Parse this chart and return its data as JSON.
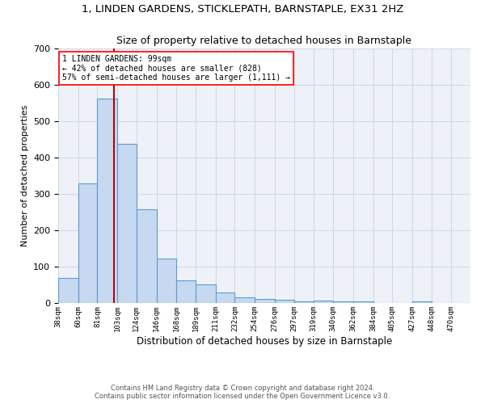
{
  "title": "1, LINDEN GARDENS, STICKLEPATH, BARNSTAPLE, EX31 2HZ",
  "subtitle": "Size of property relative to detached houses in Barnstaple",
  "xlabel": "Distribution of detached houses by size in Barnstaple",
  "ylabel": "Number of detached properties",
  "categories": [
    "38sqm",
    "60sqm",
    "81sqm",
    "103sqm",
    "124sqm",
    "146sqm",
    "168sqm",
    "189sqm",
    "211sqm",
    "232sqm",
    "254sqm",
    "276sqm",
    "297sqm",
    "319sqm",
    "340sqm",
    "362sqm",
    "384sqm",
    "405sqm",
    "427sqm",
    "448sqm",
    "470sqm"
  ],
  "values": [
    70,
    330,
    562,
    438,
    258,
    122,
    63,
    52,
    29,
    16,
    11,
    10,
    5,
    6,
    5,
    4,
    0,
    0,
    5,
    0,
    0
  ],
  "bar_color": "#c6d9f0",
  "bar_edge_color": "#5b9bd5",
  "grid_color": "#d0d8e8",
  "background_color": "#eef2f8",
  "annotation_box_text": "1 LINDEN GARDENS: 99sqm\n← 42% of detached houses are smaller (828)\n57% of semi-detached houses are larger (1,111) →",
  "vline_x": 99,
  "vline_color": "#c00000",
  "footer_line1": "Contains HM Land Registry data © Crown copyright and database right 2024.",
  "footer_line2": "Contains public sector information licensed under the Open Government Licence v3.0.",
  "bin_edges": [
    38,
    60,
    81,
    103,
    124,
    146,
    168,
    189,
    211,
    232,
    254,
    276,
    297,
    319,
    340,
    362,
    384,
    405,
    427,
    448,
    470,
    491
  ],
  "ylim": [
    0,
    700
  ],
  "yticks": [
    0,
    100,
    200,
    300,
    400,
    500,
    600,
    700
  ]
}
